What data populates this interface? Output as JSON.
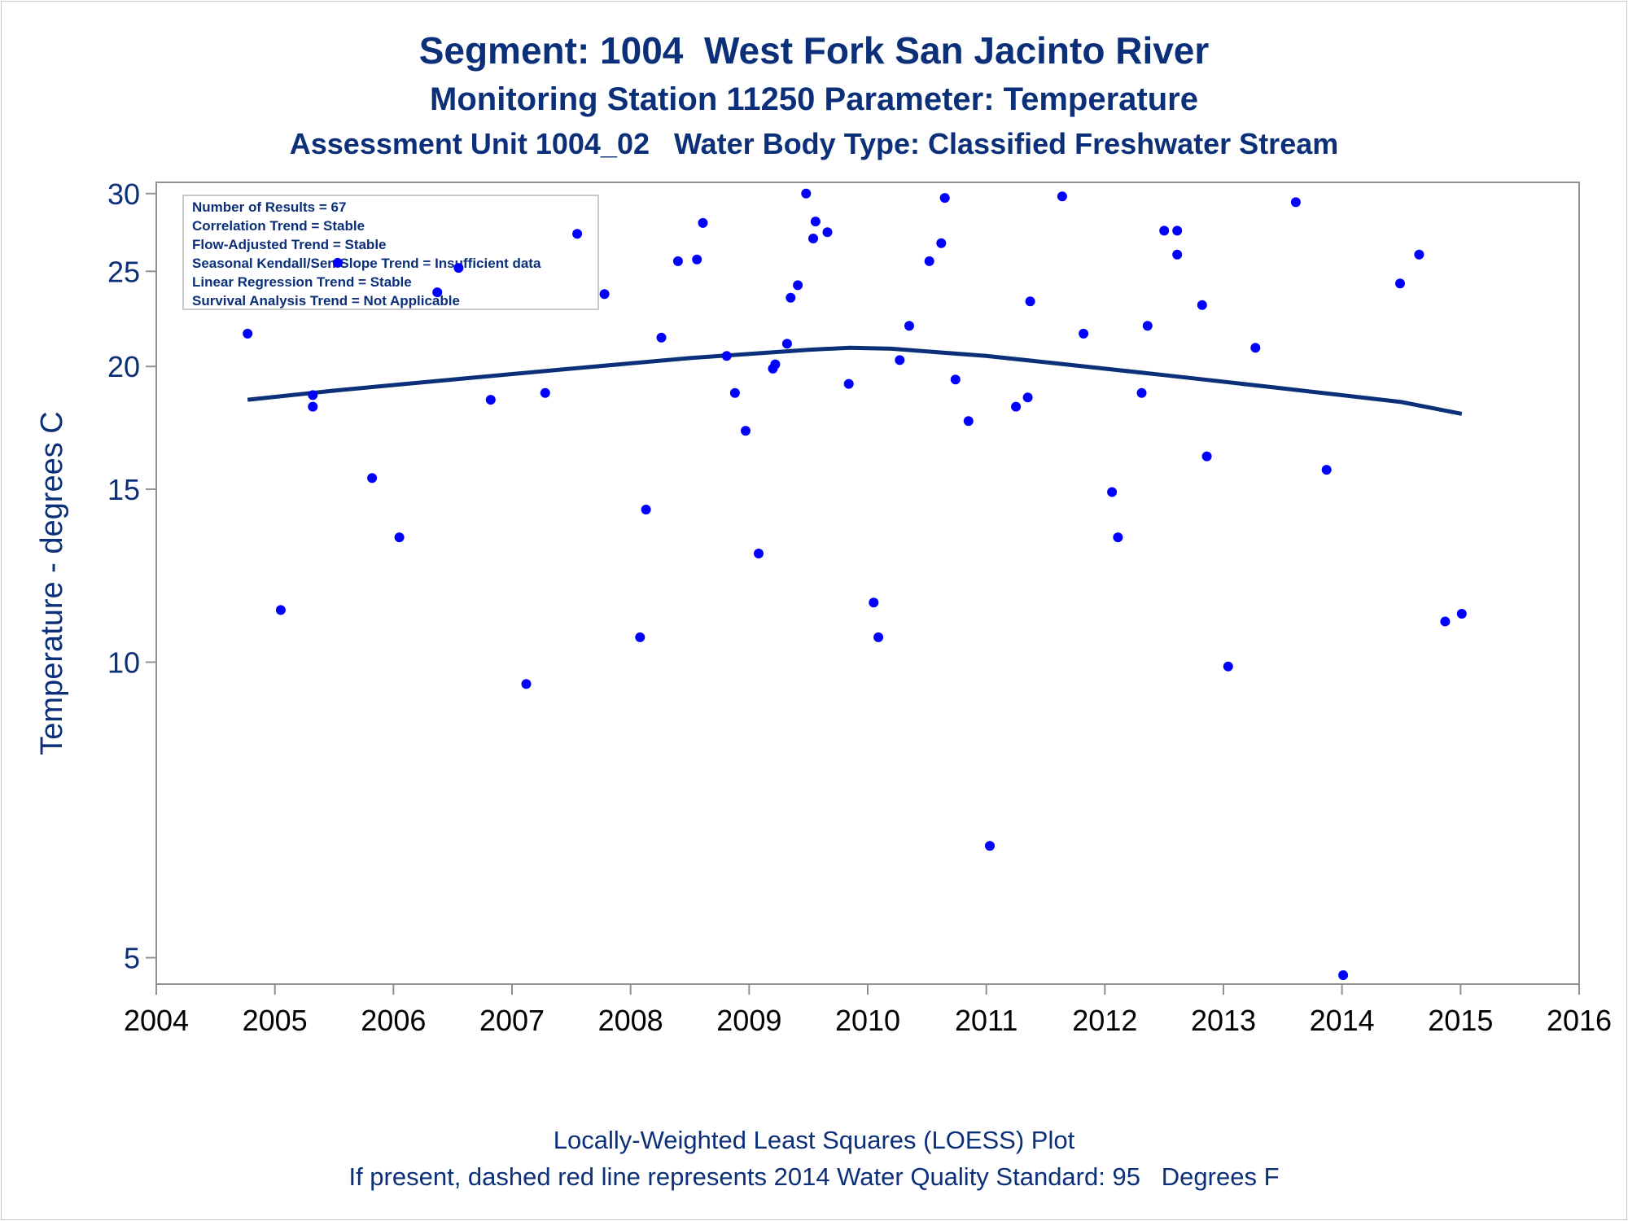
{
  "titles": {
    "line1": "Segment: 1004  West Fork San Jacinto River",
    "line2": "Monitoring Station 11250 Parameter: Temperature",
    "line3": "Assessment Unit 1004_02   Water Body Type: Classified Freshwater Stream"
  },
  "footnotes": {
    "line1": "Locally-Weighted Least Squares (LOESS) Plot",
    "line2": "If present, dashed red line represents 2014 Water Quality Standard: 95   Degrees F"
  },
  "colors": {
    "text": "#0b2f78",
    "marker": "#0000ff",
    "loess": "#0b2f78",
    "axis": "#909090"
  },
  "chart_data": {
    "type": "scatter",
    "title": "Segment: 1004  West Fork San Jacinto River",
    "xlabel": "",
    "ylabel": "Temperature - degrees C",
    "x_scale": "linear (year)",
    "y_scale": "log",
    "xlim": [
      2004,
      2016
    ],
    "ylim": [
      4.7,
      30.8
    ],
    "xticks": [
      "2004",
      "2005",
      "2006",
      "2007",
      "2008",
      "2009",
      "2010",
      "2011",
      "2012",
      "2013",
      "2014",
      "2015",
      "2016"
    ],
    "yticks": [
      "5",
      "10",
      "15",
      "20",
      "25",
      "30"
    ],
    "grid": false,
    "legend": "none",
    "stats_box": [
      "Number of Results = 67",
      "Correlation Trend = Stable",
      "Flow-Adjusted Trend = Stable",
      "Seasonal Kendall/Sen Slope Trend = Insufficient data",
      "Linear Regression Trend = Stable",
      "Survival Analysis Trend = Not Applicable"
    ],
    "series": [
      {
        "kind": "points",
        "points": [
          [
            2004.77,
            21.6
          ],
          [
            2005.05,
            11.3
          ],
          [
            2005.32,
            18.7
          ],
          [
            2005.32,
            18.2
          ],
          [
            2005.53,
            25.5
          ],
          [
            2005.82,
            15.4
          ],
          [
            2006.05,
            13.4
          ],
          [
            2006.37,
            23.8
          ],
          [
            2006.55,
            25.2
          ],
          [
            2006.82,
            18.5
          ],
          [
            2007.12,
            9.5
          ],
          [
            2007.28,
            18.8
          ],
          [
            2007.55,
            27.3
          ],
          [
            2007.78,
            23.7
          ],
          [
            2008.08,
            10.6
          ],
          [
            2008.13,
            14.3
          ],
          [
            2008.26,
            21.4
          ],
          [
            2008.4,
            25.6
          ],
          [
            2008.56,
            25.7
          ],
          [
            2008.61,
            28.0
          ],
          [
            2008.81,
            20.5
          ],
          [
            2008.88,
            18.8
          ],
          [
            2008.97,
            17.2
          ],
          [
            2009.08,
            12.9
          ],
          [
            2009.2,
            19.9
          ],
          [
            2009.22,
            20.1
          ],
          [
            2009.32,
            21.1
          ],
          [
            2009.35,
            23.5
          ],
          [
            2009.41,
            24.2
          ],
          [
            2009.48,
            30.0
          ],
          [
            2009.54,
            27.0
          ],
          [
            2009.56,
            28.1
          ],
          [
            2009.66,
            27.4
          ],
          [
            2009.84,
            19.2
          ],
          [
            2010.05,
            11.5
          ],
          [
            2010.09,
            10.6
          ],
          [
            2010.27,
            20.3
          ],
          [
            2010.35,
            22.0
          ],
          [
            2010.52,
            25.6
          ],
          [
            2010.62,
            26.7
          ],
          [
            2010.65,
            29.7
          ],
          [
            2010.74,
            19.4
          ],
          [
            2010.85,
            17.6
          ],
          [
            2011.03,
            6.5
          ],
          [
            2011.25,
            18.2
          ],
          [
            2011.35,
            18.6
          ],
          [
            2011.37,
            23.3
          ],
          [
            2011.64,
            29.8
          ],
          [
            2011.82,
            21.6
          ],
          [
            2012.06,
            14.9
          ],
          [
            2012.11,
            13.4
          ],
          [
            2012.31,
            18.8
          ],
          [
            2012.36,
            22.0
          ],
          [
            2012.5,
            27.5
          ],
          [
            2012.61,
            27.5
          ],
          [
            2012.61,
            26.0
          ],
          [
            2012.82,
            23.1
          ],
          [
            2012.86,
            16.2
          ],
          [
            2013.04,
            9.9
          ],
          [
            2013.27,
            20.9
          ],
          [
            2013.61,
            29.4
          ],
          [
            2013.87,
            15.7
          ],
          [
            2014.01,
            4.8
          ],
          [
            2014.49,
            24.3
          ],
          [
            2014.65,
            26.0
          ],
          [
            2014.87,
            11.0
          ],
          [
            2015.01,
            11.2
          ]
        ]
      },
      {
        "kind": "loess",
        "points": [
          [
            2004.77,
            18.5
          ],
          [
            2005.5,
            18.9
          ],
          [
            2006.5,
            19.4
          ],
          [
            2007.5,
            19.9
          ],
          [
            2008.5,
            20.4
          ],
          [
            2009.5,
            20.8
          ],
          [
            2009.85,
            20.9
          ],
          [
            2010.2,
            20.85
          ],
          [
            2011.0,
            20.5
          ],
          [
            2011.5,
            20.2
          ],
          [
            2012.5,
            19.6
          ],
          [
            2013.5,
            19.0
          ],
          [
            2014.5,
            18.4
          ],
          [
            2015.01,
            17.9
          ]
        ]
      }
    ]
  }
}
